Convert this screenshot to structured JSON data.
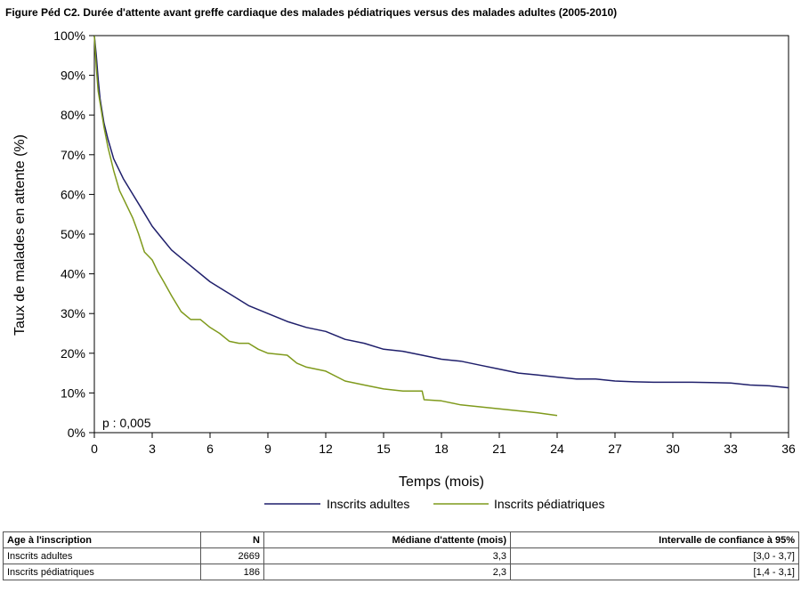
{
  "chart_data": {
    "type": "line",
    "title": "Figure Péd C2. Durée d'attente avant greffe cardiaque des malades pédiatriques versus des malades adultes (2005-2010)",
    "xlabel": "Temps (mois)",
    "ylabel": "Taux de malades en attente (%)",
    "xlim": [
      0,
      36
    ],
    "ylim": [
      0,
      100
    ],
    "xticks": [
      0,
      3,
      6,
      9,
      12,
      15,
      18,
      21,
      24,
      27,
      30,
      33,
      36
    ],
    "yticks": [
      0,
      10,
      20,
      30,
      40,
      50,
      60,
      70,
      80,
      90,
      100
    ],
    "ytick_suffix": "%",
    "annotation": "p : 0,005",
    "legend_position": "bottom",
    "grid": false,
    "series": [
      {
        "name": "Inscrits adultes",
        "color": "#1f1f6b",
        "x": [
          0,
          0.1,
          0.2,
          0.3,
          0.5,
          0.7,
          1,
          1.5,
          2,
          2.5,
          3,
          3.5,
          4,
          4.5,
          5,
          6,
          7,
          8,
          9,
          10,
          11,
          12,
          13,
          14,
          15,
          16,
          17,
          18,
          19,
          20,
          21,
          22,
          23,
          24,
          25,
          26,
          27,
          28,
          29,
          30,
          31,
          32,
          33,
          34,
          35,
          36
        ],
        "y": [
          100,
          95,
          89,
          84,
          78,
          74,
          69,
          64,
          60,
          56,
          52,
          49,
          46,
          44,
          42,
          38,
          35,
          32,
          30,
          28,
          26.5,
          25.5,
          23.5,
          22.5,
          21,
          20.5,
          19.5,
          18.5,
          18,
          17,
          16,
          15,
          14.5,
          14,
          13.5,
          13.5,
          13,
          12.8,
          12.7,
          12.7,
          12.7,
          12.6,
          12.5,
          12,
          11.8,
          11.3
        ]
      },
      {
        "name": "Inscrits pédiatriques",
        "color": "#7f9a1c",
        "x": [
          0,
          0.1,
          0.2,
          0.3,
          0.5,
          0.7,
          1,
          1.3,
          1.6,
          2,
          2.3,
          2.6,
          3,
          3.3,
          3.6,
          4,
          4.5,
          5,
          5.5,
          6,
          6.5,
          7,
          7.5,
          8,
          8.5,
          9,
          10,
          10.5,
          11,
          12,
          13,
          14,
          15,
          16,
          17,
          17.1,
          18,
          19,
          20,
          21,
          22,
          23,
          24
        ],
        "y": [
          100,
          92,
          86,
          83,
          77,
          72,
          66,
          61,
          58,
          54,
          50,
          45.5,
          43.5,
          40.5,
          38,
          34.5,
          30.5,
          28.5,
          28.5,
          26.5,
          25,
          23,
          22.5,
          22.5,
          21,
          20,
          19.5,
          17.5,
          16.5,
          15.5,
          13,
          12,
          11,
          10.5,
          10.5,
          8.3,
          8,
          7,
          6.5,
          6,
          5.5,
          5,
          4.3
        ]
      }
    ]
  },
  "table": {
    "headers": [
      "Age à l'inscription",
      "N",
      "Médiane d'attente (mois)",
      "Intervalle de confiance à 95%"
    ],
    "rows": [
      [
        "Inscrits adultes",
        "2669",
        "3,3",
        "[3,0 - 3,7]"
      ],
      [
        "Inscrits pédiatriques",
        "186",
        "2,3",
        "[1,4 - 3,1]"
      ]
    ]
  }
}
